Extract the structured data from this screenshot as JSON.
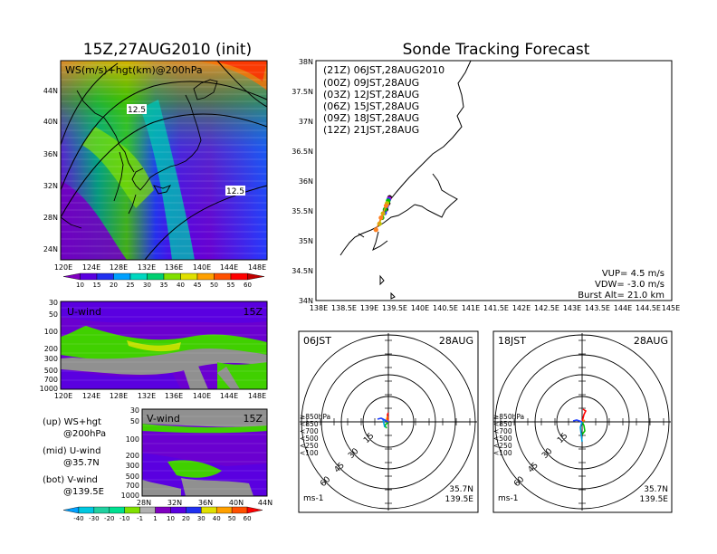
{
  "titles": {
    "left": "15Z,27AUG2010 (init)",
    "right": "Sonde Tracking Forecast"
  },
  "map_panel": {
    "label": "WS(m/s)+hgt(km)@200hPa",
    "contour_labels": [
      "12.5",
      "12.5"
    ],
    "lat_ticks": [
      "44N",
      "40N",
      "36N",
      "32N",
      "28N",
      "24N"
    ],
    "lon_ticks": [
      "120E",
      "124E",
      "128E",
      "132E",
      "136E",
      "140E",
      "144E",
      "148E"
    ],
    "colorbar_labels": [
      "10",
      "15",
      "20",
      "25",
      "30",
      "35",
      "40",
      "45",
      "50",
      "55",
      "60"
    ],
    "colorbar_colors": [
      "#8000c0",
      "#5a00e0",
      "#2030f0",
      "#00a0ff",
      "#00d8c0",
      "#00d070",
      "#80e000",
      "#e0e000",
      "#ffa000",
      "#ff5000",
      "#ff0000",
      "#c00000"
    ]
  },
  "uwind_panel": {
    "label": "U-wind",
    "time": "15Z",
    "p_ticks": [
      "30",
      "50",
      "100",
      "200",
      "300",
      "500",
      "700",
      "1000"
    ],
    "lon_ticks": [
      "120E",
      "124E",
      "128E",
      "132E",
      "136E",
      "140E",
      "144E",
      "148E"
    ]
  },
  "vwind_panel": {
    "label": "V-wind",
    "time": "15Z",
    "p_ticks": [
      "30",
      "50",
      "100",
      "200",
      "300",
      "500",
      "700",
      "1000"
    ],
    "lat_ticks": [
      "28N",
      "32N",
      "36N",
      "40N",
      "44N"
    ]
  },
  "notes": {
    "up_1": "(up) WS+hgt",
    "up_2": "@200hPa",
    "mid_1": "(mid) U-wind",
    "mid_2": "@35.7N",
    "bot_1": "(bot) V-wind",
    "bot_2": "@139.5E"
  },
  "wind_colorbar": {
    "labels": [
      "-40",
      "-30",
      "-20",
      "-10",
      "-1",
      "1",
      "10",
      "20",
      "30",
      "40",
      "50",
      "60"
    ],
    "colors": [
      "#00a0ff",
      "#00c8e0",
      "#20d0a0",
      "#00e090",
      "#80e000",
      "#b0b0b0",
      "#8000c0",
      "#5a00e0",
      "#2030f0",
      "#e0e000",
      "#ffa000",
      "#ff5000",
      "#ff0000"
    ]
  },
  "track_panel": {
    "legend": [
      {
        "label": "(21Z)  06JST,28AUG2010",
        "color": "#000000"
      },
      {
        "label": "(00Z)  09JST,28AUG",
        "color": "#c000c0"
      },
      {
        "label": "(03Z)  12JST,28AUG",
        "color": "#2040ff"
      },
      {
        "label": "(06Z)  15JST,28AUG",
        "color": "#00c000"
      },
      {
        "label": "(09Z)  18JST,28AUG",
        "color": "#c0c000"
      },
      {
        "label": "(12Z)  21JST,28AUG",
        "color": "#ff8020"
      }
    ],
    "lat_ticks": [
      "38N",
      "37.5N",
      "37N",
      "36.5N",
      "36N",
      "35.5N",
      "35N",
      "34.5N",
      "34N"
    ],
    "lon_ticks": [
      "138E",
      "138.5E",
      "139E",
      "139.5E",
      "140E",
      "140.5E",
      "141E",
      "141.5E",
      "142E",
      "142.5E",
      "143E",
      "143.5E",
      "144E",
      "144.5E",
      "145E"
    ],
    "vup": "VUP= 4.5 m/s",
    "vdw": "VDW= -3.0 m/s",
    "burst": "Burst Alt= 21.0 km"
  },
  "polar_left": {
    "time": "06JST",
    "date": "28AUG",
    "rings": [
      "15",
      "30",
      "45",
      "60"
    ],
    "unit": "ms-1",
    "lat": "35.7N",
    "lon": "139.5E",
    "levels": [
      {
        "label": "≥850hPa",
        "color": "#ff0000"
      },
      {
        "label": "<850",
        "color": "#ff8000"
      },
      {
        "label": "<700",
        "color": "#c0c000"
      },
      {
        "label": "<500",
        "color": "#00c000"
      },
      {
        "label": "<250",
        "color": "#00a0e0"
      },
      {
        "label": "<100",
        "color": "#2040ff"
      }
    ]
  },
  "polar_right": {
    "time": "18JST",
    "date": "28AUG",
    "rings": [
      "15",
      "30",
      "45",
      "60"
    ],
    "unit": "ms-1",
    "lat": "35.7N",
    "lon": "139.5E",
    "levels": [
      {
        "label": "≥850hPa",
        "color": "#ff0000"
      },
      {
        "label": "<850",
        "color": "#ff8000"
      },
      {
        "label": "<700",
        "color": "#c0c000"
      },
      {
        "label": "<500",
        "color": "#00c000"
      },
      {
        "label": "<250",
        "color": "#00a0e0"
      },
      {
        "label": "<100",
        "color": "#2040ff"
      }
    ]
  },
  "chart_data": {
    "type": "scatter",
    "title": "Sonde Tracking Forecast",
    "xlabel": "",
    "ylabel": "",
    "xlim": [
      138,
      145
    ],
    "ylim": [
      34,
      38
    ],
    "series": [
      {
        "name": "(21Z) 06JST,28AUG2010",
        "x": [
          139.45,
          139.42,
          139.38
        ],
        "y": [
          35.72,
          35.62,
          35.52
        ]
      },
      {
        "name": "(00Z) 09JST,28AUG",
        "x": [
          139.44,
          139.4,
          139.36
        ],
        "y": [
          35.7,
          35.6,
          35.5
        ]
      },
      {
        "name": "(03Z) 12JST,28AUG",
        "x": [
          139.43,
          139.39,
          139.35
        ],
        "y": [
          35.68,
          35.57,
          35.46
        ]
      },
      {
        "name": "(06Z) 15JST,28AUG",
        "x": [
          139.42,
          139.36,
          139.3
        ],
        "y": [
          35.66,
          35.52,
          35.38
        ]
      },
      {
        "name": "(09Z) 18JST,28AUG",
        "x": [
          139.4,
          139.32,
          139.25
        ],
        "y": [
          35.62,
          35.45,
          35.28
        ]
      },
      {
        "name": "(12Z) 21JST,28AUG",
        "x": [
          139.38,
          139.28,
          139.18
        ],
        "y": [
          35.58,
          35.38,
          35.18
        ]
      }
    ]
  }
}
